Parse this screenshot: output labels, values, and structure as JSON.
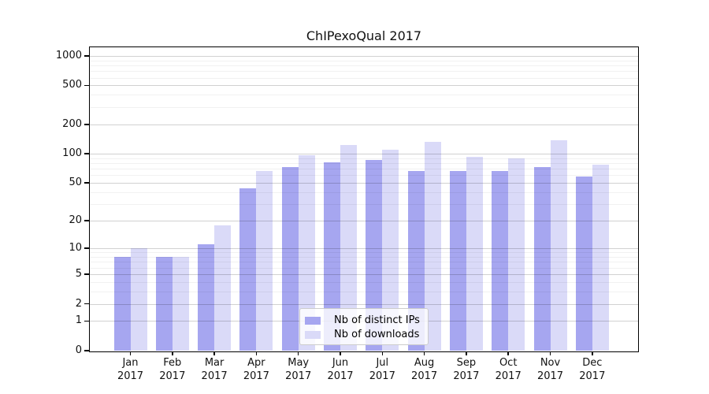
{
  "title": "ChIPexoQual 2017",
  "chart_data": {
    "type": "bar",
    "title": "ChIPexoQual 2017",
    "categories": [
      "Jan 2017",
      "Feb 2017",
      "Mar 2017",
      "Apr 2017",
      "May 2017",
      "Jun 2017",
      "Jul 2017",
      "Aug 2017",
      "Sep 2017",
      "Oct 2017",
      "Nov 2017",
      "Dec 2017"
    ],
    "x": {
      "months": [
        "Jan",
        "Feb",
        "Mar",
        "Apr",
        "May",
        "Jun",
        "Jul",
        "Aug",
        "Sep",
        "Oct",
        "Nov",
        "Dec"
      ],
      "year": "2017"
    },
    "series": [
      {
        "name": "Nb of distinct IPs",
        "color": "#a6a6f0",
        "values": [
          8,
          8,
          11,
          44,
          73,
          82,
          86,
          66,
          67,
          66,
          73,
          58
        ]
      },
      {
        "name": "Nb of downloads",
        "color": "#dadaf8",
        "values": [
          10,
          8,
          18,
          67,
          96,
          123,
          111,
          133,
          93,
          90,
          137,
          77
        ]
      }
    ],
    "y_axis": {
      "scale": "log10(1+value)",
      "tick_labels": [
        "1000",
        "500",
        "200",
        "100",
        "50",
        "20",
        "10",
        "5",
        "2",
        "1",
        "0"
      ],
      "ticks": [
        1000,
        500,
        200,
        100,
        50,
        20,
        10,
        5,
        2,
        1,
        0
      ],
      "minor_gridlines": [
        3,
        4,
        6,
        7,
        8,
        9,
        30,
        40,
        60,
        70,
        80,
        90,
        300,
        400,
        600,
        700,
        800,
        900
      ],
      "range_top": 1224
    },
    "legend": {
      "position": "inside bottom-center",
      "entries": [
        "Nb of distinct IPs",
        "Nb of downloads"
      ]
    },
    "grid": true,
    "colors": {
      "major_grid": "rgba(0,0,0,0.18)",
      "minor_grid": "rgba(0,0,0,0.055)",
      "frame": "#000000",
      "background": "#ffffff"
    }
  }
}
